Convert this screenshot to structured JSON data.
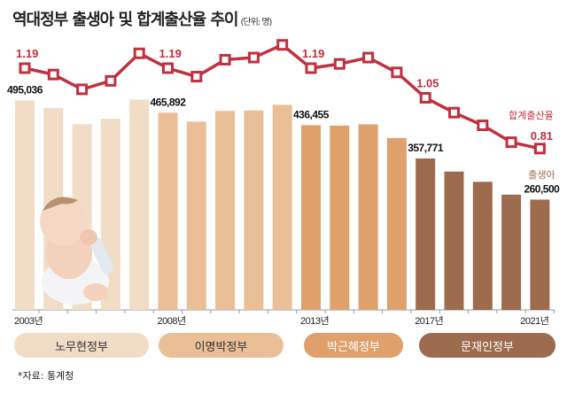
{
  "title": "역대정부 출생아 및 합계출산율 추이",
  "unit": "(단위: 명)",
  "source": "*자료: 통계청",
  "colors": {
    "line": "#c0303e",
    "roh": "#f1dcc6",
    "lee": "#eabf98",
    "park": "#dfa06b",
    "moon": "#9d6b4d"
  },
  "governments": [
    {
      "label": "노무현정부",
      "color": "#f1dcc6",
      "text_color": "#333",
      "years": [
        2003,
        2007
      ]
    },
    {
      "label": "이명박정부",
      "color": "#eabf98",
      "text_color": "#333",
      "years": [
        2008,
        2012
      ]
    },
    {
      "label": "박근혜정부",
      "color": "#dfa06b",
      "text_color": "#fff",
      "years": [
        2013,
        2016
      ]
    },
    {
      "label": "문재인정부",
      "color": "#9d6b4d",
      "text_color": "#fff",
      "years": [
        2017,
        2021
      ]
    }
  ],
  "chart_data": {
    "type": "bar+line",
    "x": [
      2003,
      2004,
      2005,
      2006,
      2007,
      2008,
      2009,
      2010,
      2011,
      2012,
      2013,
      2014,
      2015,
      2016,
      2017,
      2018,
      2019,
      2020,
      2021
    ],
    "x_tick_labels": [
      "2003년",
      "2008년",
      "2013년",
      "2017년",
      "2021년"
    ],
    "series": [
      {
        "name": "출생아",
        "type": "bar",
        "values": [
          495036,
          476958,
          438707,
          451759,
          496822,
          465892,
          444849,
          470171,
          471265,
          484550,
          436455,
          435435,
          438420,
          406243,
          357771,
          326822,
          302676,
          272337,
          260500
        ],
        "data_labels": {
          "2003": "495,036",
          "2008": "465,892",
          "2013": "436,455",
          "2017": "357,771",
          "2021": "260,500"
        }
      },
      {
        "name": "합계출산율",
        "type": "line",
        "values": [
          1.19,
          1.16,
          1.09,
          1.13,
          1.26,
          1.19,
          1.15,
          1.23,
          1.24,
          1.3,
          1.19,
          1.21,
          1.24,
          1.17,
          1.05,
          0.98,
          0.92,
          0.84,
          0.81
        ],
        "data_labels": {
          "2003": "1.19",
          "2008": "1.19",
          "2013": "1.19",
          "2017": "1.05",
          "2021": "0.81"
        }
      }
    ]
  }
}
